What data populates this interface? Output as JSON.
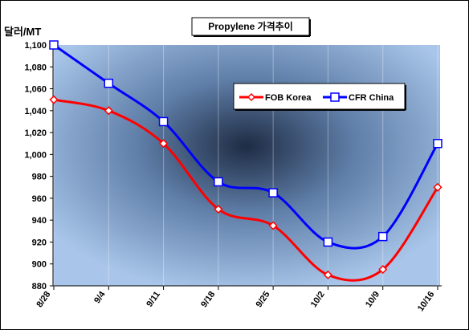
{
  "chart_data": {
    "type": "line",
    "title": "Propylene 가격추이",
    "ylabel": "달러/MT",
    "xlabel": "",
    "categories": [
      "8/28",
      "9/4",
      "9/11",
      "9/18",
      "9/25",
      "10/2",
      "10/9",
      "10/16"
    ],
    "series": [
      {
        "name": "FOB Korea",
        "color": "#ff0000",
        "marker": "diamond",
        "values": [
          1050,
          1040,
          1010,
          950,
          935,
          890,
          895,
          970
        ]
      },
      {
        "name": "CFR China",
        "color": "#0000ff",
        "marker": "square",
        "values": [
          1100,
          1065,
          1030,
          975,
          965,
          920,
          925,
          1010
        ]
      }
    ],
    "yticks": [
      "1,100",
      "1,080",
      "1,060",
      "1,040",
      "1,020",
      "1,000",
      "980",
      "960",
      "940",
      "920",
      "900",
      "880"
    ],
    "ylim": [
      880,
      1100
    ],
    "grid": false,
    "legend_position": "upper-right"
  }
}
